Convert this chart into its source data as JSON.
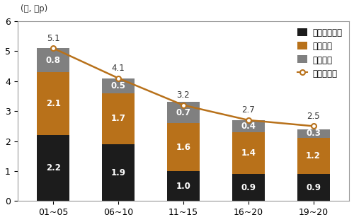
{
  "categories": [
    "01~05",
    "06~10",
    "11~15",
    "16~20",
    "19~20"
  ],
  "tfp": [
    2.2,
    1.9,
    1.0,
    0.9,
    0.9
  ],
  "capital": [
    2.1,
    1.7,
    1.6,
    1.4,
    1.2
  ],
  "labor": [
    0.8,
    0.5,
    0.7,
    0.4,
    0.3
  ],
  "potential": [
    5.1,
    4.1,
    3.2,
    2.7,
    2.5
  ],
  "color_tfp": "#1c1c1c",
  "color_capital": "#b8711a",
  "color_labor": "#808080",
  "color_line": "#b8711a",
  "ylabel": "(％, ％p)",
  "ylim": [
    0,
    6
  ],
  "yticks": [
    0,
    1,
    2,
    3,
    4,
    5,
    6
  ],
  "legend_labels": [
    "쳙요소생산성",
    "자본투입",
    "노동투입",
    "잠재성장률"
  ],
  "bar_width": 0.5,
  "figsize": [
    5.0,
    3.14
  ],
  "dpi": 100
}
